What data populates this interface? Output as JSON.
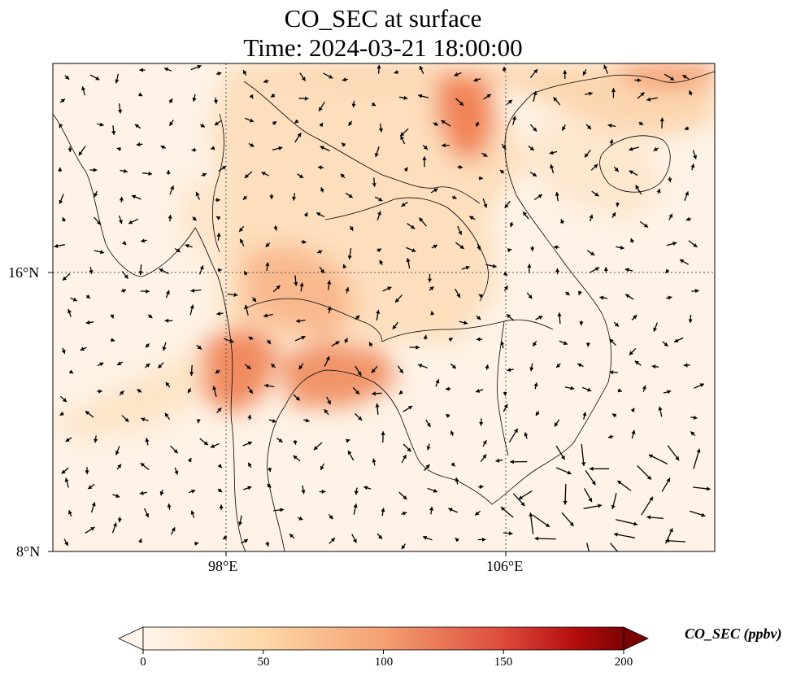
{
  "title": {
    "line1": "CO_SEC at surface",
    "line2": "Time: 2024-03-21 18:00:00"
  },
  "map": {
    "x_tick_labels": [
      "98°E",
      "106°E"
    ],
    "y_tick_labels": [
      "16°N",
      "8°N"
    ],
    "colormap": [
      "#fff5eb",
      "#fee6ce",
      "#fdd0a2",
      "#fdae6b",
      "#fd8d3c",
      "#f16913",
      "#d94801",
      "#a63603",
      "#7f2704"
    ],
    "frame_color": "#000000",
    "arrow_color": "#000000"
  },
  "colorbar": {
    "label": "CO_SEC (ppbv)",
    "ticks": [
      "0",
      "50",
      "100",
      "150",
      "200"
    ],
    "start_color": "#fff5eb",
    "mid_color": "#f4a073",
    "end_color": "#7a0403"
  }
}
